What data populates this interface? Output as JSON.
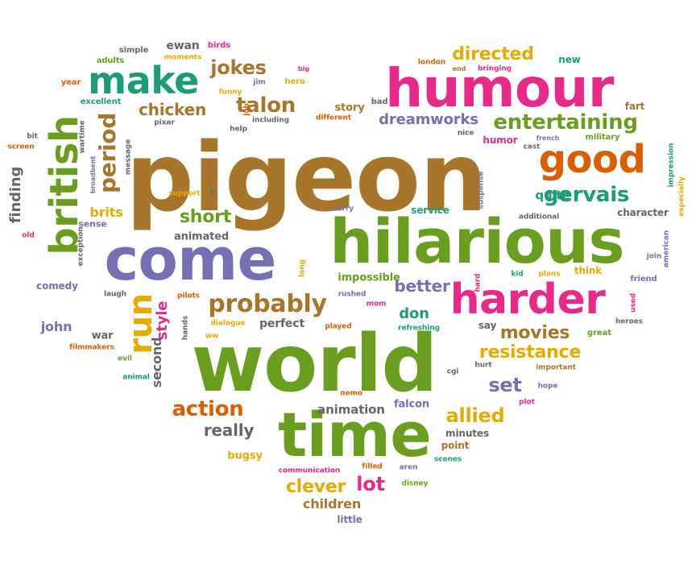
{
  "palette": {
    "brown": "#A8762A",
    "green": "#6A9E1F",
    "magenta": "#E7298A",
    "orange": "#D95F02",
    "purple": "#7570B3",
    "teal": "#1B9E77",
    "gold": "#E6AB02",
    "gray": "#666666"
  },
  "words": [
    {
      "text": "pigeon",
      "color": "brown"
    },
    {
      "text": "world",
      "color": "green"
    },
    {
      "text": "hilarious",
      "color": "green"
    },
    {
      "text": "time",
      "color": "green"
    },
    {
      "text": "come",
      "color": "purple"
    },
    {
      "text": "humour",
      "color": "magenta"
    },
    {
      "text": "harder",
      "color": "magenta"
    },
    {
      "text": "british",
      "color": "green"
    },
    {
      "text": "make",
      "color": "teal"
    },
    {
      "text": "good",
      "color": "orange"
    },
    {
      "text": "run",
      "color": "gold"
    },
    {
      "text": "probably",
      "color": "brown"
    },
    {
      "text": "entertaining",
      "color": "green"
    },
    {
      "text": "gervais",
      "color": "teal"
    },
    {
      "text": "period",
      "color": "brown"
    },
    {
      "text": "talon",
      "color": "brown"
    },
    {
      "text": "jokes",
      "color": "brown"
    },
    {
      "text": "directed",
      "color": "gold"
    },
    {
      "text": "chicken",
      "color": "brown"
    },
    {
      "text": "action",
      "color": "orange"
    },
    {
      "text": "allied",
      "color": "gold"
    },
    {
      "text": "resistance",
      "color": "gold"
    },
    {
      "text": "movies",
      "color": "brown"
    },
    {
      "text": "clever",
      "color": "gold"
    },
    {
      "text": "lot",
      "color": "magenta"
    },
    {
      "text": "set",
      "color": "purple"
    },
    {
      "text": "really",
      "color": "gray"
    },
    {
      "text": "short",
      "color": "green"
    },
    {
      "text": "better",
      "color": "purple"
    },
    {
      "text": "dreamworks",
      "color": "purple"
    },
    {
      "text": "style",
      "color": "magenta"
    },
    {
      "text": "brits",
      "color": "gold"
    },
    {
      "text": "quite",
      "color": "teal"
    },
    {
      "text": "finding",
      "color": "gray"
    },
    {
      "text": "don",
      "color": "teal"
    },
    {
      "text": "john",
      "color": "purple"
    },
    {
      "text": "children",
      "color": "brown"
    },
    {
      "text": "ewan",
      "color": "gray"
    },
    {
      "text": "second",
      "color": "gray"
    },
    {
      "text": "animation",
      "color": "gray"
    },
    {
      "text": "perfect",
      "color": "gray"
    },
    {
      "text": "character",
      "color": "gray"
    },
    {
      "text": "story",
      "color": "brown"
    },
    {
      "text": "impossible",
      "color": "green"
    },
    {
      "text": "service",
      "color": "teal"
    },
    {
      "text": "humor",
      "color": "magenta"
    },
    {
      "text": "falcon",
      "color": "purple"
    },
    {
      "text": "minutes",
      "color": "gray"
    },
    {
      "text": "point",
      "color": "brown"
    },
    {
      "text": "animated",
      "color": "gray"
    },
    {
      "text": "fart",
      "color": "brown"
    },
    {
      "text": "new",
      "color": "teal"
    },
    {
      "text": "bugsy",
      "color": "gold"
    },
    {
      "text": "comedy",
      "color": "purple"
    },
    {
      "text": "war",
      "color": "gray"
    },
    {
      "text": "say",
      "color": "gray"
    },
    {
      "text": "think",
      "color": "gold"
    },
    {
      "text": "military",
      "color": "green"
    },
    {
      "text": "great",
      "color": "green"
    },
    {
      "text": "sense",
      "color": "purple"
    },
    {
      "text": "bad",
      "color": "gray"
    },
    {
      "text": "friend",
      "color": "purple"
    },
    {
      "text": "kid",
      "color": "teal"
    },
    {
      "text": "plans",
      "color": "gold"
    },
    {
      "text": "heroes",
      "color": "gray"
    },
    {
      "text": "little",
      "color": "purple"
    },
    {
      "text": "excellent",
      "color": "teal"
    },
    {
      "text": "adults",
      "color": "green"
    },
    {
      "text": "simple",
      "color": "gray"
    },
    {
      "text": "birds",
      "color": "magenta"
    },
    {
      "text": "moments",
      "color": "gold"
    },
    {
      "text": "year",
      "color": "orange"
    },
    {
      "text": "funny",
      "color": "gold"
    },
    {
      "text": "jim",
      "color": "purple"
    },
    {
      "text": "hero",
      "color": "gold"
    },
    {
      "text": "big",
      "color": "magenta"
    },
    {
      "text": "london",
      "color": "orange"
    },
    {
      "text": "end",
      "color": "brown"
    },
    {
      "text": "bringing",
      "color": "magenta"
    },
    {
      "text": "pixar",
      "color": "gray"
    },
    {
      "text": "including",
      "color": "gray"
    },
    {
      "text": "different",
      "color": "orange"
    },
    {
      "text": "nice",
      "color": "gray"
    },
    {
      "text": "french",
      "color": "purple"
    },
    {
      "text": "cast",
      "color": "gray"
    },
    {
      "text": "help",
      "color": "gray"
    },
    {
      "text": "job",
      "color": "orange"
    },
    {
      "text": "bit",
      "color": "gray"
    },
    {
      "text": "screen",
      "color": "orange"
    },
    {
      "text": "message",
      "color": "gray"
    },
    {
      "text": "wartime",
      "color": "gray"
    },
    {
      "text": "broadbent",
      "color": "purple"
    },
    {
      "text": "old",
      "color": "magenta"
    },
    {
      "text": "exception",
      "color": "gray"
    },
    {
      "text": "support",
      "color": "gold"
    },
    {
      "text": "ii",
      "color": "gray"
    },
    {
      "text": "curry",
      "color": "purple"
    },
    {
      "text": "suspense",
      "color": "purple"
    },
    {
      "text": "additional",
      "color": "gray"
    },
    {
      "text": "impression",
      "color": "teal"
    },
    {
      "text": "especially",
      "color": "gold"
    },
    {
      "text": "american",
      "color": "purple"
    },
    {
      "text": "join",
      "color": "purple"
    },
    {
      "text": "used",
      "color": "magenta"
    },
    {
      "text": "long",
      "color": "gold"
    },
    {
      "text": "pilots",
      "color": "orange"
    },
    {
      "text": "laugh",
      "color": "gray"
    },
    {
      "text": "filmmakers",
      "color": "orange"
    },
    {
      "text": "hands",
      "color": "gray"
    },
    {
      "text": "ww",
      "color": "gold"
    },
    {
      "text": "evil",
      "color": "green"
    },
    {
      "text": "animal",
      "color": "teal"
    },
    {
      "text": "dialogue",
      "color": "gold"
    },
    {
      "text": "played",
      "color": "orange"
    },
    {
      "text": "refreshing",
      "color": "teal"
    },
    {
      "text": "rushed",
      "color": "purple"
    },
    {
      "text": "mom",
      "color": "magenta"
    },
    {
      "text": "hard",
      "color": "magenta"
    },
    {
      "text": "cgi",
      "color": "gray"
    },
    {
      "text": "hurt",
      "color": "gray"
    },
    {
      "text": "important",
      "color": "brown"
    },
    {
      "text": "hope",
      "color": "purple"
    },
    {
      "text": "plot",
      "color": "magenta"
    },
    {
      "text": "nemo",
      "color": "orange"
    },
    {
      "text": "communication",
      "color": "magenta"
    },
    {
      "text": "filled",
      "color": "orange"
    },
    {
      "text": "aren",
      "color": "purple"
    },
    {
      "text": "disney",
      "color": "green"
    },
    {
      "text": "scenes",
      "color": "teal"
    }
  ]
}
